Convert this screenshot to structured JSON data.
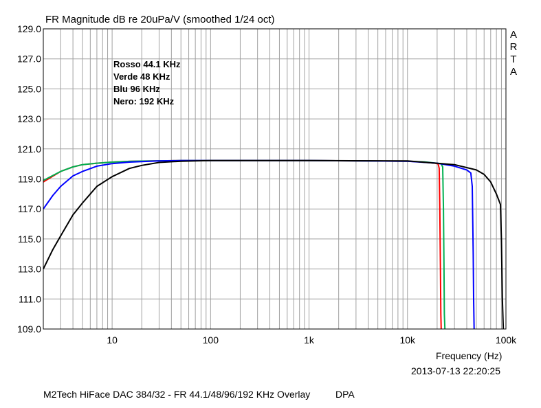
{
  "chart_data": {
    "type": "line",
    "title": "FR Magnitude dB re 20uPa/V (smoothed 1/24 oct)",
    "xlabel": "Frequency (Hz)",
    "ylabel": "",
    "xscale": "log",
    "xlim": [
      2,
      100000
    ],
    "ylim": [
      109,
      129
    ],
    "grid": true,
    "xticks": [
      10,
      100,
      1000,
      10000,
      100000
    ],
    "xtick_labels": [
      "10",
      "100",
      "1k",
      "10k",
      "100k"
    ],
    "yticks": [
      109,
      111,
      113,
      115,
      117,
      119,
      121,
      123,
      125,
      127,
      129
    ],
    "ytick_labels": [
      "109.0",
      "111.0",
      "113.0",
      "115.0",
      "117.0",
      "119.0",
      "121.0",
      "123.0",
      "125.0",
      "127.0",
      "129.0"
    ],
    "legend_lines": [
      "Rosso 44.1 KHz",
      "Verde 48 KHz",
      "Blu 96 KHz",
      "Nero: 192 KHz"
    ],
    "series": [
      {
        "color": "#ff0000",
        "x": [
          2,
          3,
          4,
          5,
          7,
          10,
          15,
          20,
          30,
          50,
          100,
          1000,
          10000,
          15000,
          19000,
          20500,
          21000,
          21300,
          21600,
          21800,
          22000
        ],
        "y": [
          118.8,
          119.5,
          119.8,
          119.95,
          120.05,
          120.12,
          120.17,
          120.19,
          120.21,
          120.22,
          120.22,
          120.22,
          120.18,
          120.12,
          120.05,
          120.0,
          119.7,
          117.0,
          113.0,
          110.0,
          109.0
        ]
      },
      {
        "color": "#00b050",
        "x": [
          2,
          3,
          4,
          5,
          7,
          10,
          15,
          20,
          30,
          50,
          100,
          1000,
          10000,
          15000,
          20000,
          22000,
          22800,
          23200,
          23500,
          23700,
          24000
        ],
        "y": [
          118.9,
          119.5,
          119.8,
          119.95,
          120.05,
          120.12,
          120.17,
          120.19,
          120.21,
          120.22,
          120.22,
          120.22,
          120.18,
          120.13,
          120.05,
          120.0,
          119.8,
          117.0,
          113.0,
          110.0,
          109.0
        ]
      },
      {
        "color": "#0000ff",
        "x": [
          2,
          2.5,
          3,
          4,
          5,
          7,
          10,
          15,
          20,
          30,
          50,
          100,
          1000,
          10000,
          20000,
          30000,
          40000,
          44000,
          45500,
          46500,
          47000,
          47500
        ],
        "y": [
          117.0,
          117.9,
          118.5,
          119.2,
          119.5,
          119.85,
          120.02,
          120.12,
          120.16,
          120.2,
          120.22,
          120.22,
          120.22,
          120.18,
          120.05,
          119.85,
          119.6,
          119.4,
          118.5,
          114.0,
          111.0,
          109.0
        ]
      },
      {
        "color": "#000000",
        "x": [
          2,
          2.5,
          3,
          4,
          5,
          7,
          10,
          15,
          20,
          30,
          50,
          100,
          1000,
          10000,
          30000,
          50000,
          60000,
          70000,
          80000,
          88000,
          90000,
          92000,
          94000
        ],
        "y": [
          113.0,
          114.3,
          115.2,
          116.6,
          117.4,
          118.5,
          119.15,
          119.7,
          119.9,
          120.1,
          120.18,
          120.22,
          120.22,
          120.2,
          119.95,
          119.6,
          119.3,
          118.8,
          118.0,
          117.3,
          115.0,
          111.0,
          109.0
        ]
      }
    ]
  },
  "arta_letters": [
    "A",
    "R",
    "T",
    "A"
  ],
  "timestamp": "2013-07-13  22:20:25",
  "footer": "M2Tech HiFace DAC 384/32 - FR 44.1/48/96/192 KHz Overlay",
  "footer_author": "DPA"
}
